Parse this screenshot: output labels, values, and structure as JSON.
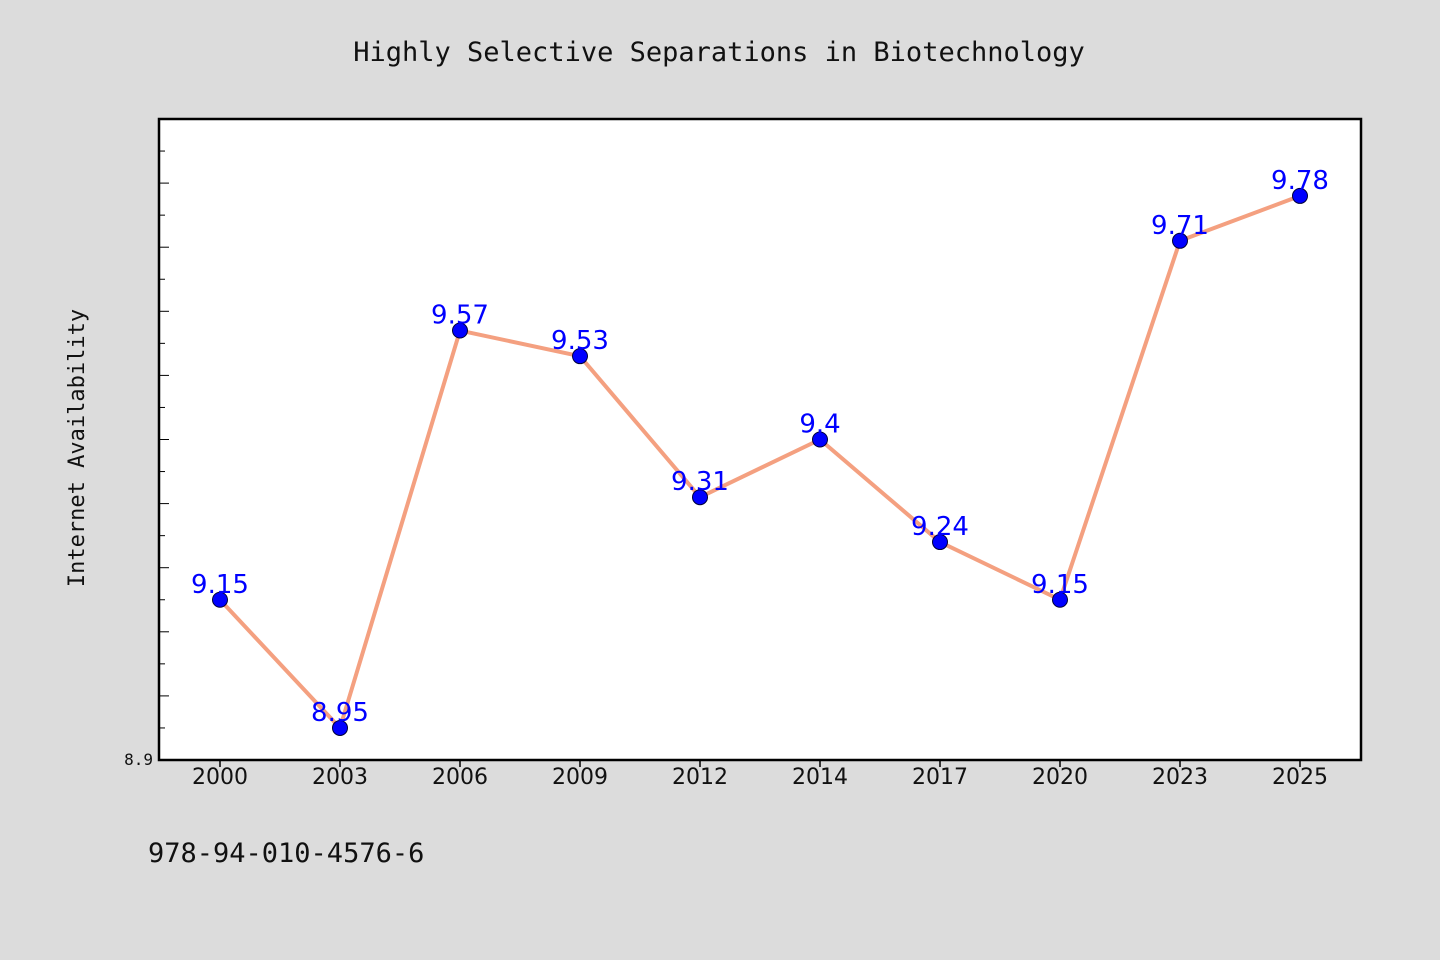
{
  "chart_data": {
    "type": "line",
    "title": "Highly Selective Separations in Biotechnology",
    "xlabel": "",
    "ylabel": "Internet Availability",
    "categories": [
      "2000",
      "2003",
      "2006",
      "2009",
      "2012",
      "2014",
      "2017",
      "2020",
      "2023",
      "2025"
    ],
    "series": [
      {
        "values": [
          9.15,
          8.95,
          9.57,
          9.53,
          9.31,
          9.4,
          9.24,
          9.15,
          9.71,
          9.78
        ],
        "labels": [
          "9.15",
          "8.95",
          "9.57",
          "9.53",
          "9.31",
          "9.4",
          "9.24",
          "9.15",
          "9.71",
          "9.78"
        ]
      }
    ],
    "ylim": [
      8.9,
      9.9
    ],
    "yticks_labeled": [
      "8.9"
    ],
    "grid": false,
    "legend": "none",
    "colors": {
      "line": "#f4a080",
      "marker": "#0000ff",
      "data_label": "#0000ff",
      "plot_background": "#ffffff",
      "figure_background": "#dcdcdc"
    }
  },
  "footer_text": "978-94-010-4576-6"
}
